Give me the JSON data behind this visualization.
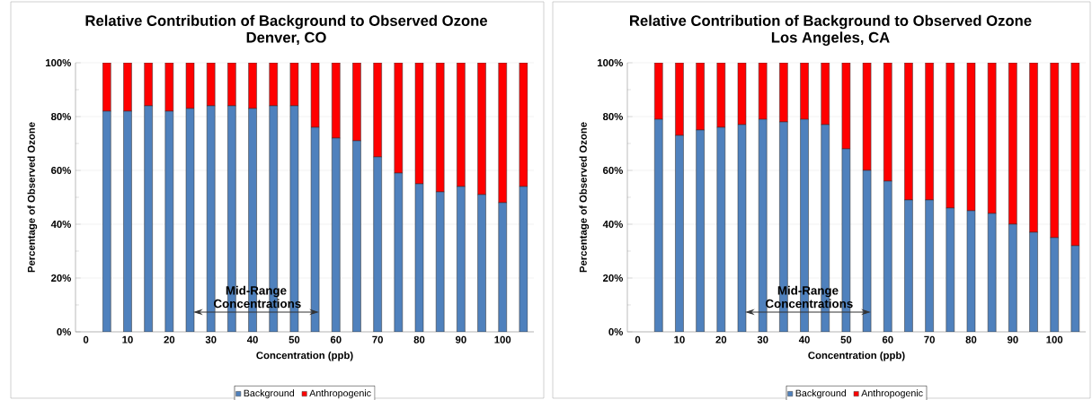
{
  "chart_data": [
    {
      "type": "bar",
      "stacked": true,
      "title": "Relative Contribution of Background to Observed Ozone",
      "subtitle": "Denver, CO",
      "xlabel": "Concentration (ppb)",
      "ylabel": "Percentage of Observed Ozone",
      "categories": [
        "0",
        null,
        "10",
        null,
        "20",
        null,
        "30",
        null,
        "40",
        null,
        "50",
        null,
        "60",
        null,
        "70",
        null,
        "80",
        null,
        "90",
        null,
        "100",
        null
      ],
      "series": [
        {
          "name": "Background",
          "color": "#4f81bd",
          "values": [
            null,
            82,
            82,
            84,
            82,
            83,
            84,
            84,
            83,
            84,
            84,
            76,
            72,
            71,
            65,
            59,
            55,
            52,
            54,
            51,
            48,
            54
          ]
        },
        {
          "name": "Anthropogenic",
          "color": "#ff0000",
          "values": [
            null,
            18,
            18,
            16,
            18,
            17,
            16,
            16,
            17,
            16,
            16,
            24,
            28,
            29,
            35,
            41,
            45,
            48,
            46,
            49,
            52,
            46
          ]
        }
      ],
      "ylim": [
        0,
        100
      ],
      "yticks": [
        {
          "value": 0,
          "label": "0%"
        },
        {
          "value": 20,
          "label": "20%"
        },
        {
          "value": 40,
          "label": "40%"
        },
        {
          "value": 60,
          "label": "60%"
        },
        {
          "value": 80,
          "label": "80%"
        },
        {
          "value": 100,
          "label": "100%"
        }
      ],
      "annotations": [
        "Mid-Range Concentrations"
      ],
      "grid": "y",
      "legend": "bottom"
    },
    {
      "type": "bar",
      "stacked": true,
      "title": "Relative Contribution of Background to Observed Ozone",
      "subtitle": "Los Angeles, CA",
      "xlabel": "Concentration (ppb)",
      "ylabel": "Percentage of Observed Ozone",
      "categories": [
        "0",
        null,
        "10",
        null,
        "20",
        null,
        "30",
        null,
        "40",
        null,
        "50",
        null,
        "60",
        null,
        "70",
        null,
        "80",
        null,
        "90",
        null,
        "100",
        null
      ],
      "series": [
        {
          "name": "Background",
          "color": "#4f81bd",
          "values": [
            null,
            79,
            73,
            75,
            76,
            77,
            79,
            78,
            79,
            77,
            68,
            60,
            56,
            49,
            49,
            46,
            45,
            44,
            40,
            37,
            35,
            32
          ]
        },
        {
          "name": "Anthropogenic",
          "color": "#ff0000",
          "values": [
            null,
            21,
            27,
            25,
            24,
            23,
            21,
            22,
            21,
            23,
            32,
            40,
            44,
            51,
            51,
            54,
            55,
            56,
            60,
            63,
            65,
            68
          ]
        }
      ],
      "ylim": [
        0,
        100
      ],
      "yticks": [
        {
          "value": 0,
          "label": "0%"
        },
        {
          "value": 20,
          "label": "20%"
        },
        {
          "value": 40,
          "label": "40%"
        },
        {
          "value": 60,
          "label": "60%"
        },
        {
          "value": 80,
          "label": "80%"
        },
        {
          "value": 100,
          "label": "100%"
        }
      ],
      "annotations": [
        "Mid-Range Concentrations"
      ],
      "grid": "y",
      "legend": "bottom"
    }
  ]
}
